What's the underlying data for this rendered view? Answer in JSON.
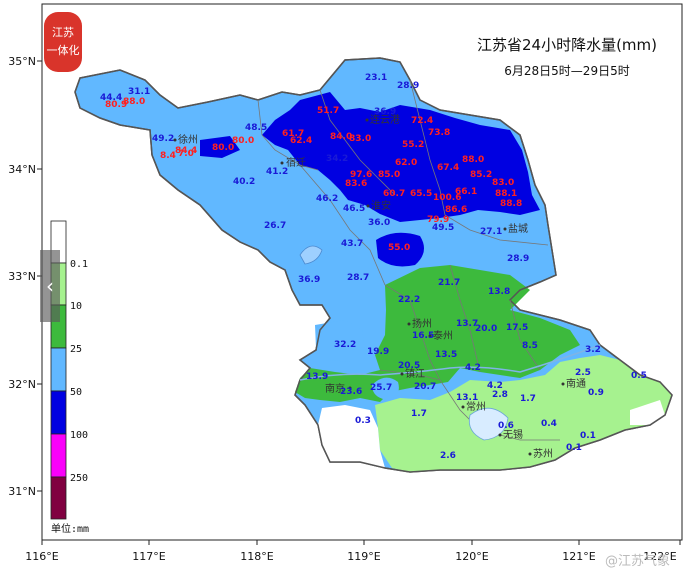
{
  "title": "江苏省24小时降水量(mm)",
  "subtitle": "6月28日5时—29日5时",
  "logo_text": "江苏一体化",
  "watermark": "@江苏气象",
  "unit_label": "单位:mm",
  "axes": {
    "lon_labels": [
      "116°E",
      "117°E",
      "118°E",
      "119°E",
      "120°E",
      "121°E",
      "122°E"
    ],
    "lat_labels": [
      "35°N",
      "34°N",
      "33°N",
      "32°N",
      "31°N"
    ]
  },
  "legend": {
    "items": [
      {
        "label": "0.1",
        "color": "#ffffff"
      },
      {
        "label": "10",
        "color": "#a6f28f"
      },
      {
        "label": "25",
        "color": "#3dba3d"
      },
      {
        "label": "50",
        "color": "#61b8ff"
      },
      {
        "label": "100",
        "color": "#0000e1"
      },
      {
        "label": "250",
        "color": "#fa00fa"
      },
      {
        "label": "",
        "color": "#800040"
      }
    ]
  },
  "cities": [
    "徐州",
    "宿迁",
    "连云港",
    "淮安",
    "盐城",
    "扬州",
    "泰州",
    "南京",
    "镇江",
    "常州",
    "无锡",
    "苏州",
    "南通"
  ],
  "colors": {
    "blue_label": "#1a1ad6",
    "red_label": "#ff2020",
    "province_border": "#555555"
  },
  "chart_data": {
    "type": "map",
    "stations_visible": [
      {
        "v": "44.4"
      },
      {
        "v": "31.1"
      },
      {
        "v": "80.9"
      },
      {
        "v": "88.0"
      },
      {
        "v": "23.1"
      },
      {
        "v": "28.9"
      },
      {
        "v": "51.7"
      },
      {
        "v": "36.9"
      },
      {
        "v": "48.5"
      },
      {
        "v": "49.2"
      },
      {
        "v": "34.2"
      },
      {
        "v": "41.2"
      },
      {
        "v": "40.2"
      },
      {
        "v": "46.2"
      },
      {
        "v": "46.5"
      },
      {
        "v": "26.7"
      },
      {
        "v": "36.0"
      },
      {
        "v": "43.7"
      },
      {
        "v": "55.0"
      },
      {
        "v": "49.5"
      },
      {
        "v": "27.1"
      },
      {
        "v": "28.9"
      },
      {
        "v": "36.9"
      },
      {
        "v": "28.7"
      },
      {
        "v": "21.7"
      },
      {
        "v": "13.8"
      },
      {
        "v": "22.2"
      },
      {
        "v": "32.2"
      },
      {
        "v": "13.7"
      },
      {
        "v": "20.0"
      },
      {
        "v": "17.5"
      },
      {
        "v": "16.5"
      },
      {
        "v": "19.9"
      },
      {
        "v": "8.5"
      },
      {
        "v": "3.2"
      },
      {
        "v": "13.5"
      },
      {
        "v": "20.5"
      },
      {
        "v": "4.2"
      },
      {
        "v": "13.9"
      },
      {
        "v": "25.7"
      },
      {
        "v": "20.7"
      },
      {
        "v": "4.2"
      },
      {
        "v": "2.5"
      },
      {
        "v": "0.5"
      },
      {
        "v": "23.6"
      },
      {
        "v": "13.1"
      },
      {
        "v": "2.8"
      },
      {
        "v": "1.7"
      },
      {
        "v": "0.9"
      },
      {
        "v": "0.3"
      },
      {
        "v": "1.7"
      },
      {
        "v": "0.6"
      },
      {
        "v": "0.4"
      },
      {
        "v": "0.1"
      },
      {
        "v": "2.6"
      },
      {
        "v": "0.1"
      },
      {
        "v": "79.9"
      },
      {
        "v": "62.0"
      },
      {
        "v": "60.7"
      },
      {
        "v": "55.2"
      },
      {
        "v": "67.4"
      },
      {
        "v": "83.0"
      },
      {
        "v": "100.6"
      },
      {
        "v": "86.6"
      }
    ]
  }
}
